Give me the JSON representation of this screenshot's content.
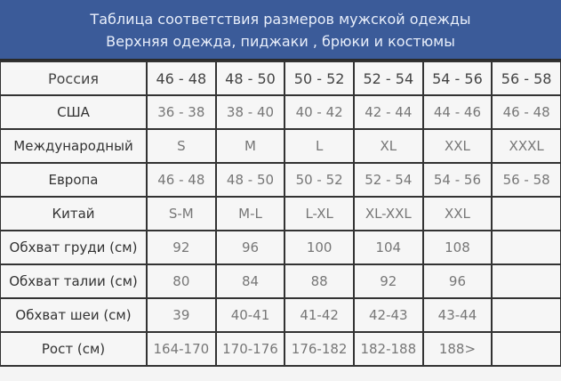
{
  "header": {
    "title": "Таблица соответствия размеров мужской одежды",
    "subtitle": "Верхняя одежда, пиджаки , брюки и костюмы"
  },
  "rows": [
    {
      "label": "Россия",
      "values": [
        "46 - 48",
        "48 - 50",
        "50 - 52",
        "52 - 54",
        "54 - 56",
        "56 - 58"
      ]
    },
    {
      "label": "США",
      "values": [
        "36 - 38",
        "38 - 40",
        "40 - 42",
        "42 - 44",
        "44 - 46",
        "46 - 48"
      ]
    },
    {
      "label": "Международный",
      "values": [
        "S",
        "M",
        "L",
        "XL",
        "XXL",
        "XXXL"
      ]
    },
    {
      "label": "Европа",
      "values": [
        "46 - 48",
        "48 - 50",
        "50 - 52",
        "52 - 54",
        "54 - 56",
        "56 - 58"
      ]
    },
    {
      "label": "Китай",
      "values": [
        "S-M",
        "M-L",
        "L-XL",
        "XL-XXL",
        "XXL",
        ""
      ]
    },
    {
      "label": "Обхват груди (см)",
      "values": [
        "92",
        "96",
        "100",
        "104",
        "108",
        ""
      ]
    },
    {
      "label": "Обхват талии (см)",
      "values": [
        "80",
        "84",
        "88",
        "92",
        "96",
        ""
      ]
    },
    {
      "label": "Обхват шеи (см)",
      "values": [
        "39",
        "40-41",
        "41-42",
        "42-43",
        "43-44",
        ""
      ]
    },
    {
      "label": "Рост (см)",
      "values": [
        "164-170",
        "170-176",
        "176-182",
        "182-188",
        "188>",
        ""
      ]
    }
  ]
}
